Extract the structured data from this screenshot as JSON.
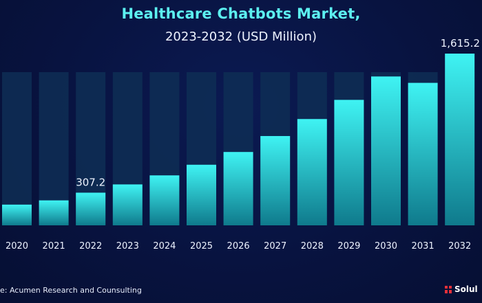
{
  "chart_data": {
    "type": "bar",
    "title": "Healthcare Chatbots Market,",
    "subtitle": "2023-2032 (USD Million)",
    "categories": [
      "2020",
      "2021",
      "2022",
      "2023",
      "2024",
      "2025",
      "2026",
      "2027",
      "2028",
      "2029",
      "2030",
      "2031",
      "2032"
    ],
    "values": [
      195,
      235,
      307.2,
      385,
      470,
      570,
      690,
      840,
      1000,
      1180,
      1400,
      1340,
      1615.2
    ],
    "data_labels": {
      "2022": "307.2",
      "2032": "1,615.2"
    },
    "xlabel": "",
    "ylabel": "",
    "ylim": [
      0,
      1615.2
    ],
    "grid": false,
    "legend": "none",
    "colors": {
      "bar_top": "#3ff3f3",
      "bar_bottom": "#0f7a8c",
      "column_band": "#0e2e55",
      "background": "#07103a",
      "title": "#5cf0f0",
      "text": "#eef3ff"
    }
  },
  "footer": {
    "source": "e: Acumen Research and Counsulting",
    "brand": "Solul"
  }
}
